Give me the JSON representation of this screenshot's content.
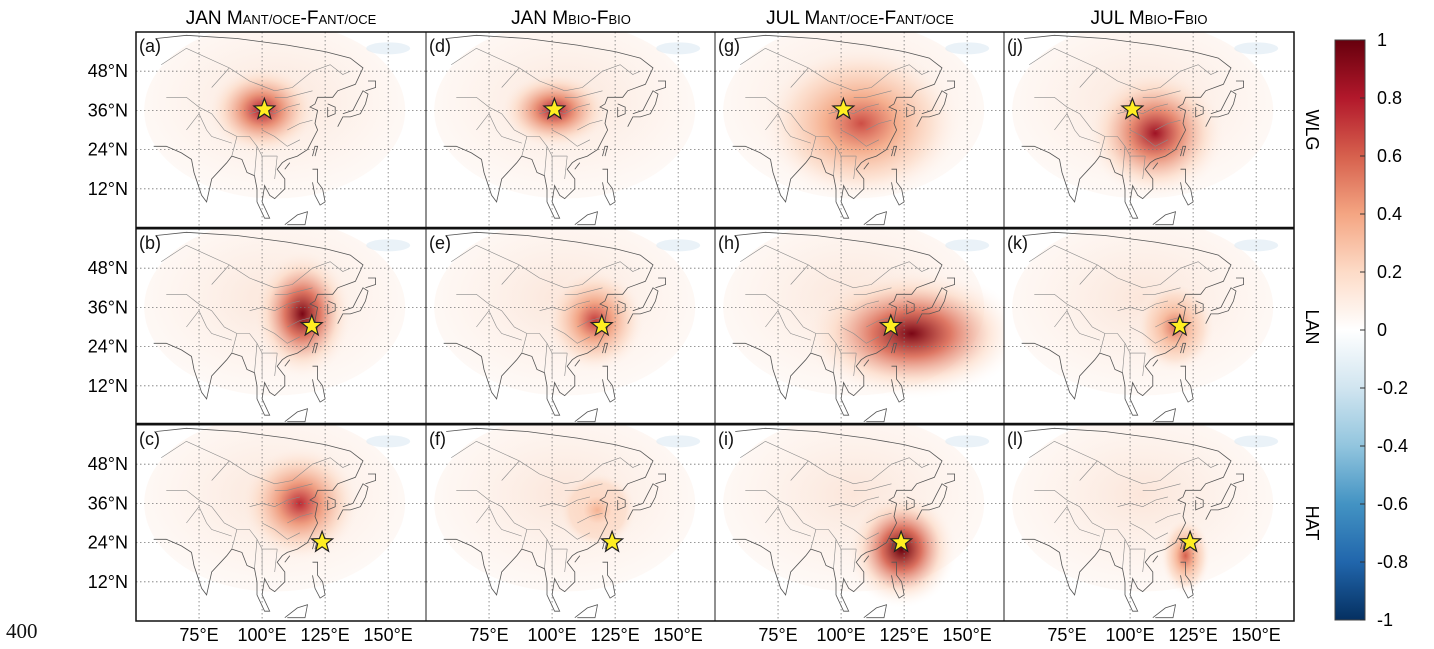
{
  "page_number": "400",
  "chart_data": {
    "type": "heatmap",
    "columns": [
      {
        "prefix": "JAN M",
        "sub1": "ANT/OCE",
        "mid": "-F",
        "sub2": "ANT/OCE"
      },
      {
        "prefix": "JAN M",
        "sub1": "BIO",
        "mid": "-F",
        "sub2": "BIO"
      },
      {
        "prefix": "JUL M",
        "sub1": "ANT/OCE",
        "mid": "-F",
        "sub2": "ANT/OCE"
      },
      {
        "prefix": "JUL M",
        "sub1": "BIO",
        "mid": "-F",
        "sub2": "BIO"
      }
    ],
    "rows": [
      "WLG",
      "LAN",
      "HAT"
    ],
    "panel_labels": [
      [
        "(a)",
        "(d)",
        "(g)",
        "(j)"
      ],
      [
        "(b)",
        "(e)",
        "(h)",
        "(k)"
      ],
      [
        "(c)",
        "(f)",
        "(i)",
        "(l)"
      ]
    ],
    "xticks": [
      75,
      100,
      125,
      150
    ],
    "xtick_labels": [
      "75°E",
      "100°E",
      "125°E",
      "150°E"
    ],
    "xlim": [
      50,
      165
    ],
    "yticks": [
      12,
      24,
      36,
      48
    ],
    "ytick_labels": [
      "12°N",
      "24°N",
      "36°N",
      "48°N"
    ],
    "ylim": [
      0,
      60
    ],
    "colorbar": {
      "range": [
        -1,
        1
      ],
      "ticks": [
        1,
        0.8,
        0.6,
        0.4,
        0.2,
        0,
        -0.2,
        -0.4,
        -0.6,
        -0.8,
        -1
      ],
      "tick_labels": [
        "1",
        "0.8",
        "0.6",
        "0.4",
        "0.2",
        "0",
        "-0.2",
        "-0.4",
        "-0.6",
        "-0.8",
        "-1"
      ]
    },
    "stations": [
      {
        "name": "WLG",
        "lon": 100.9,
        "lat": 36.3
      },
      {
        "name": "LAN",
        "lon": 119.7,
        "lat": 30.3
      },
      {
        "name": "HAT",
        "lon": 123.8,
        "lat": 24.1
      }
    ],
    "panels": [
      [
        {
          "peak": 0.8,
          "lon": 100,
          "lat": 36,
          "rx": 11,
          "ry": 7
        },
        {
          "peak": 0.8,
          "lon": 101,
          "lat": 36,
          "rx": 11,
          "ry": 6
        },
        {
          "peak": 0.65,
          "lon": 108,
          "lat": 32,
          "rx": 20,
          "ry": 12
        },
        {
          "peak": 0.85,
          "lon": 110,
          "lat": 29,
          "rx": 14,
          "ry": 10
        }
      ],
      [
        {
          "peak": 0.95,
          "lon": 116,
          "lat": 34,
          "rx": 10,
          "ry": 10
        },
        {
          "peak": 0.7,
          "lon": 117,
          "lat": 32,
          "rx": 10,
          "ry": 8
        },
        {
          "peak": 0.95,
          "lon": 128,
          "lat": 28,
          "rx": 22,
          "ry": 10
        },
        {
          "peak": 0.55,
          "lon": 118,
          "lat": 30,
          "rx": 8,
          "ry": 7
        }
      ],
      [
        {
          "peak": 0.75,
          "lon": 115,
          "lat": 36,
          "rx": 12,
          "ry": 9
        },
        {
          "peak": 0.35,
          "lon": 118,
          "lat": 34,
          "rx": 8,
          "ry": 6
        },
        {
          "peak": 1.0,
          "lon": 124,
          "lat": 22,
          "rx": 11,
          "ry": 9
        },
        {
          "peak": 0.6,
          "lon": 122,
          "lat": 20,
          "rx": 5,
          "ry": 6
        }
      ]
    ],
    "colors": {
      "positive": "#67000d",
      "negative": "#053061",
      "zero": "#ffffff",
      "star": "#ffee22",
      "station_outline": "#222222"
    }
  }
}
